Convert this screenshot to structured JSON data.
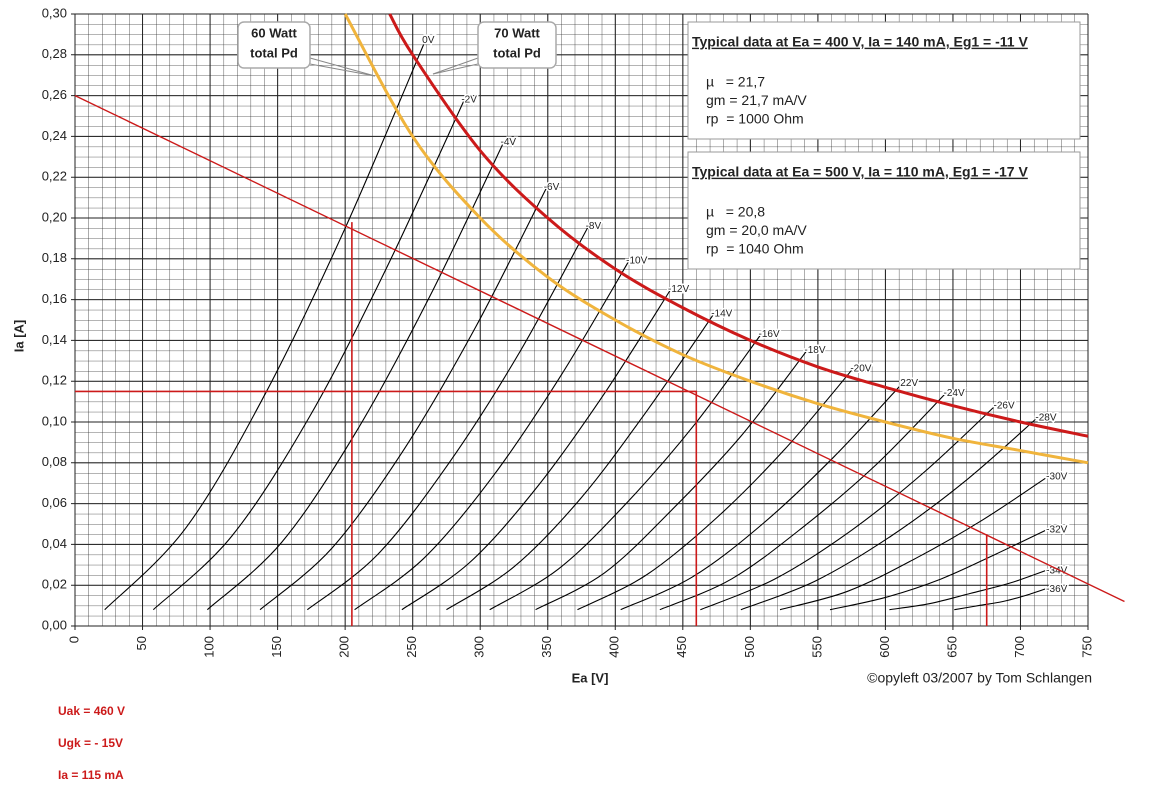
{
  "chart_data": {
    "type": "line",
    "xlabel": "Ea [V]",
    "ylabel": "Ia [A]",
    "xlim": [
      0,
      750
    ],
    "ylim": [
      0,
      0.3
    ],
    "xticks": [
      0,
      50,
      100,
      150,
      200,
      250,
      300,
      350,
      400,
      450,
      500,
      550,
      600,
      650,
      700,
      750
    ],
    "yticks": [
      {
        "value": 0,
        "label": "0,00"
      },
      {
        "value": 0.02,
        "label": "0,02"
      },
      {
        "value": 0.04,
        "label": "0,04"
      },
      {
        "value": 0.06,
        "label": "0,06"
      },
      {
        "value": 0.08,
        "label": "0,08"
      },
      {
        "value": 0.1,
        "label": "0,10"
      },
      {
        "value": 0.12,
        "label": "0,12"
      },
      {
        "value": 0.14,
        "label": "0,14"
      },
      {
        "value": 0.16,
        "label": "0,16"
      },
      {
        "value": 0.18,
        "label": "0,18"
      },
      {
        "value": 0.2,
        "label": "0,20"
      },
      {
        "value": 0.22,
        "label": "0,22"
      },
      {
        "value": 0.24,
        "label": "0,24"
      },
      {
        "value": 0.26,
        "label": "0,26"
      },
      {
        "value": 0.28,
        "label": "0,28"
      },
      {
        "value": 0.3,
        "label": "0,30"
      }
    ],
    "grid": true,
    "series": [
      {
        "name": "0V",
        "color": "#000000",
        "x": [
          22,
          82,
          141,
          200,
          260
        ],
        "values": [
          0.008,
          0.048,
          0.114,
          0.195,
          0.288
        ]
      },
      {
        "name": "-2V",
        "color": "#000000",
        "x": [
          58,
          116,
          174,
          231,
          289
        ],
        "values": [
          0.008,
          0.044,
          0.103,
          0.176,
          0.259
        ]
      },
      {
        "name": "-4V",
        "color": "#000000",
        "x": [
          98,
          153,
          208,
          263,
          318
        ],
        "values": [
          0.008,
          0.041,
          0.095,
          0.162,
          0.238
        ]
      },
      {
        "name": "-6V",
        "color": "#000000",
        "x": [
          137,
          190,
          244,
          297,
          350
        ],
        "values": [
          0.008,
          0.038,
          0.087,
          0.147,
          0.216
        ]
      },
      {
        "name": "-8V",
        "color": "#000000",
        "x": [
          172,
          224,
          277,
          329,
          381
        ],
        "values": [
          0.008,
          0.035,
          0.08,
          0.134,
          0.197
        ]
      },
      {
        "name": "-10V",
        "color": "#000000",
        "x": [
          207,
          258,
          309,
          360,
          411
        ],
        "values": [
          0.008,
          0.033,
          0.073,
          0.123,
          0.18
        ]
      },
      {
        "name": "-12V",
        "color": "#000000",
        "x": [
          242,
          292,
          342,
          392,
          442
        ],
        "values": [
          0.008,
          0.031,
          0.068,
          0.114,
          0.166
        ]
      },
      {
        "name": "-14V",
        "color": "#000000",
        "x": [
          275,
          325,
          375,
          424,
          474
        ],
        "values": [
          0.008,
          0.029,
          0.063,
          0.106,
          0.154
        ]
      },
      {
        "name": "-16V",
        "color": "#000000",
        "x": [
          307,
          358,
          408,
          459,
          509
        ],
        "values": [
          0.008,
          0.028,
          0.06,
          0.099,
          0.144
        ]
      },
      {
        "name": "-18V",
        "color": "#000000",
        "x": [
          341,
          392,
          442,
          493,
          543
        ],
        "values": [
          0.008,
          0.026,
          0.057,
          0.093,
          0.136
        ]
      },
      {
        "name": "-20V",
        "color": "#000000",
        "x": [
          372,
          423,
          475,
          526,
          577
        ],
        "values": [
          0.008,
          0.025,
          0.053,
          0.087,
          0.127
        ]
      },
      {
        "name": "22V",
        "color": "#000000",
        "x": [
          404,
          457,
          509,
          562,
          614
        ],
        "values": [
          0.008,
          0.024,
          0.05,
          0.083,
          0.12
        ]
      },
      {
        "name": "-24V",
        "color": "#000000",
        "x": [
          433,
          486,
          540,
          593,
          646
        ],
        "values": [
          0.008,
          0.023,
          0.049,
          0.079,
          0.115
        ]
      },
      {
        "name": "-26V",
        "color": "#000000",
        "x": [
          463,
          518,
          573,
          628,
          683
        ],
        "values": [
          0.008,
          0.023,
          0.046,
          0.075,
          0.109
        ]
      },
      {
        "name": "-28V",
        "color": "#000000",
        "x": [
          493,
          548,
          604,
          659,
          714
        ],
        "values": [
          0.008,
          0.022,
          0.044,
          0.071,
          0.103
        ]
      },
      {
        "name": "-30V",
        "color": "#000000",
        "x": [
          522,
          572,
          622,
          672,
          722
        ],
        "values": [
          0.008,
          0.017,
          0.033,
          0.052,
          0.074
        ]
      },
      {
        "name": "-32V",
        "color": "#000000",
        "x": [
          559,
          600,
          641,
          681,
          722
        ],
        "values": [
          0.008,
          0.014,
          0.023,
          0.035,
          0.048
        ]
      },
      {
        "name": "-34V",
        "color": "#000000",
        "x": [
          603,
          633,
          663,
          692,
          722
        ],
        "values": [
          0.008,
          0.011,
          0.016,
          0.021,
          0.028
        ]
      },
      {
        "name": "-36V",
        "color": "#000000",
        "x": [
          651,
          669,
          687,
          704,
          722
        ],
        "values": [
          0.008,
          0.01,
          0.012,
          0.015,
          0.019
        ]
      }
    ],
    "power_curves": [
      {
        "label": [
          "60 Watt",
          "total Pd"
        ],
        "color": "#f0b43c",
        "x": [
          200,
          250,
          300,
          350,
          400,
          450,
          500,
          550,
          600,
          650,
          700,
          750
        ],
        "values": [
          0.3,
          0.24,
          0.2,
          0.171,
          0.15,
          0.133,
          0.12,
          0.109,
          0.1,
          0.092,
          0.086,
          0.08
        ]
      },
      {
        "label": [
          "70 Watt",
          "total Pd"
        ],
        "color": "#cc1a1a",
        "x": [
          233,
          250,
          300,
          350,
          400,
          450,
          500,
          550,
          600,
          650,
          700,
          750
        ],
        "values": [
          0.3,
          0.28,
          0.233,
          0.2,
          0.175,
          0.156,
          0.14,
          0.127,
          0.117,
          0.108,
          0.1,
          0.093
        ]
      }
    ],
    "load_line": {
      "color": "#cc1a1a",
      "x": [
        0,
        777
      ],
      "values": [
        0.26,
        0.012
      ]
    },
    "markers": [
      {
        "color": "#cc1a1a",
        "x": [
          0,
          460,
          460
        ],
        "values": [
          0.115,
          0.115,
          0
        ]
      },
      {
        "color": "#cc1a1a",
        "x": [
          205,
          205
        ],
        "values": [
          0.198,
          0
        ]
      },
      {
        "color": "#cc1a1a",
        "x": [
          675,
          675
        ],
        "values": [
          0.045,
          0
        ]
      }
    ],
    "info_boxes": [
      {
        "title": "Typical data at Ea = 400 V, Ia = 140 mA, Eg1 = -11 V",
        "lines": [
          "µ   = 21,7",
          "gm = 21,7 mA/V",
          "rp  = 1000 Ohm"
        ]
      },
      {
        "title": "Typical data at Ea = 500 V, Ia = 110 mA, Eg1 = -17 V",
        "lines": [
          "µ   = 20,8",
          "gm = 20,0 mA/V",
          "rp  = 1040 Ohm"
        ]
      }
    ],
    "credit": "©opyleft 03/2007 by Tom Schlangen",
    "notes": [
      "Uak = 460 V",
      "Ugk = - 15V",
      "Ia = 115 mA"
    ]
  }
}
